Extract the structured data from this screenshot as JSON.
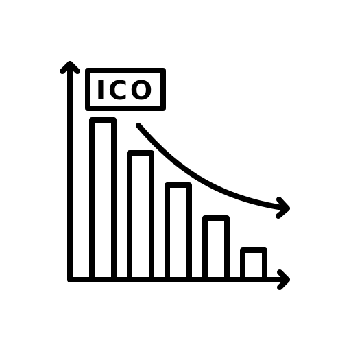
{
  "icon": {
    "label": "ICO",
    "stroke_color": "#000000",
    "background_color": "#ffffff",
    "depicts": "declining-bar-chart-with-downward-trend-arrow"
  }
}
